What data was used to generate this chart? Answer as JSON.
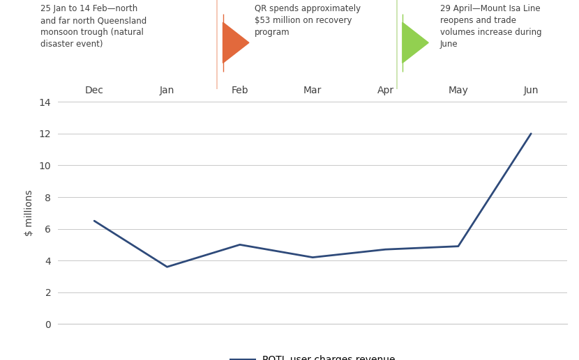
{
  "months": [
    "Dec",
    "Jan",
    "Feb",
    "Mar",
    "Apr",
    "May",
    "Jun"
  ],
  "x_values": [
    0,
    1,
    2,
    3,
    4,
    5,
    6
  ],
  "y_values": [
    6.5,
    3.6,
    5.0,
    4.2,
    4.7,
    4.9,
    12.0
  ],
  "line_color": "#2E4A7A",
  "line_width": 2.0,
  "ylim": [
    0,
    14
  ],
  "yticks": [
    0,
    2,
    4,
    6,
    8,
    10,
    12,
    14
  ],
  "ylabel": "$ millions",
  "legend_label": "POTL user charges revenue",
  "annotation1_text": "25 Jan to 14 Feb—north\nand far north Queensland\nmonsoon trough (natural\ndisaster event)",
  "annotation2_text": "QR spends approximately\n$53 million on recovery\nprogram",
  "annotation3_text": "29 April—Mount Isa Line\nreopens and trade\nvolumes increase during\nJune",
  "arrow1_color": "#E2693C",
  "arrow2_color": "#92D050",
  "vline1_color": "#F4BFAA",
  "vline2_color": "#C5E0A5",
  "header_bar_color": "#1F3864",
  "background_color": "#FFFFFF",
  "grid_color": "#C8C8C8",
  "text_color": "#404040",
  "ann_fontsize": 8.5,
  "axis_fontsize": 10,
  "legend_fontsize": 10
}
